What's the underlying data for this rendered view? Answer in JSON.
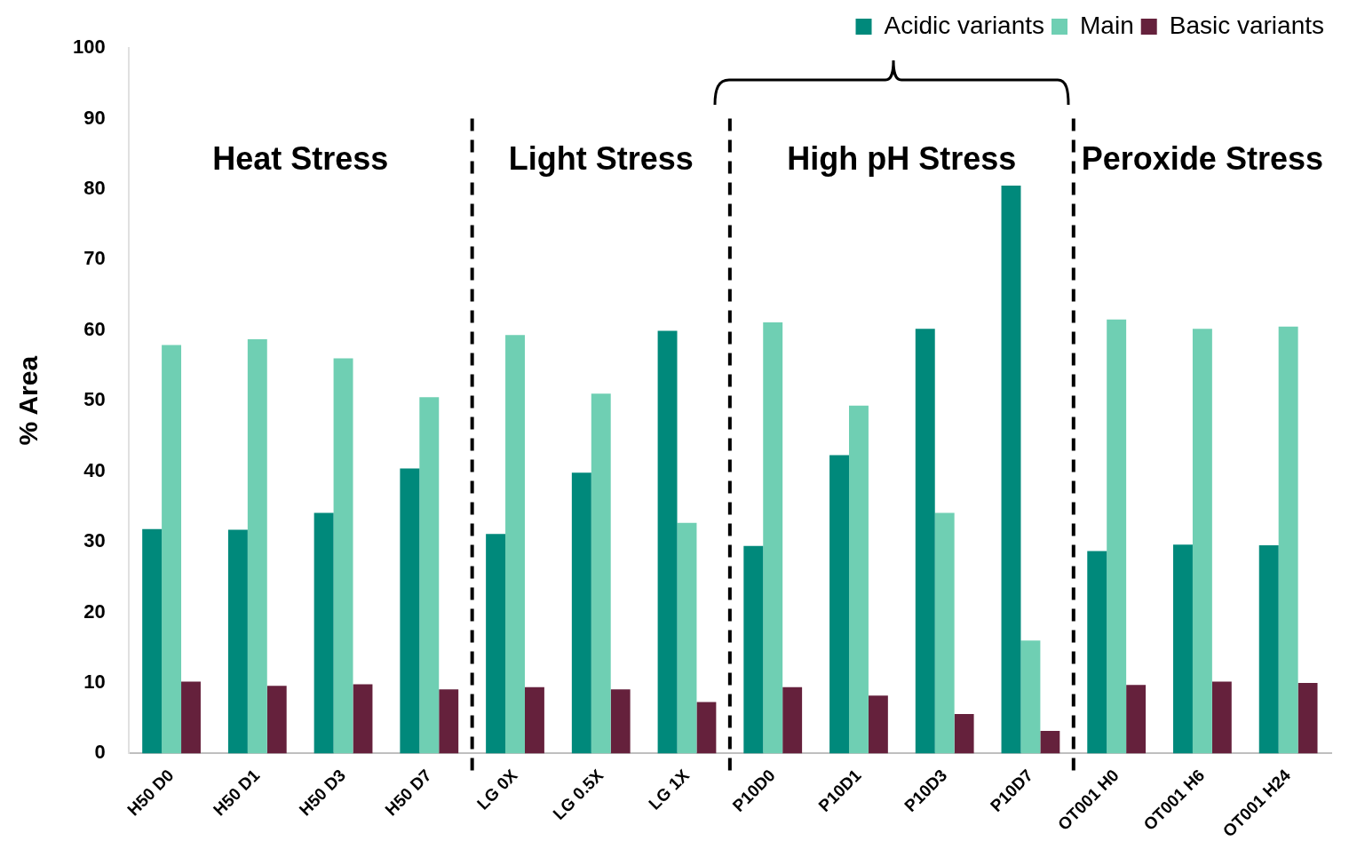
{
  "chart_data": {
    "type": "bar",
    "ylabel": "% Area",
    "categories": [
      "H50 D0",
      "H50 D1",
      "H50 D3",
      "H50 D7",
      "LG 0X",
      "LG 0.5X",
      "LG 1X",
      "P10D0",
      "P10D1",
      "P10D3",
      "P10D7",
      "OT001 H0",
      "OT001 H6",
      "OT001 H24"
    ],
    "series": [
      {
        "name": "Acidic variants",
        "color": "#00897b",
        "values": [
          31.8,
          31.7,
          34.1,
          40.4,
          31.1,
          39.8,
          59.9,
          29.4,
          42.3,
          60.2,
          80.5,
          28.7,
          29.6,
          29.5
        ]
      },
      {
        "name": "Main",
        "color": "#6fcfb3",
        "values": [
          57.9,
          58.7,
          56.0,
          50.5,
          59.3,
          51.0,
          32.7,
          61.1,
          49.3,
          34.1,
          16.0,
          61.5,
          60.2,
          60.5
        ]
      },
      {
        "name": "Basic variants",
        "color": "#65213c",
        "values": [
          10.2,
          9.6,
          9.8,
          9.1,
          9.4,
          9.1,
          7.3,
          9.4,
          8.2,
          5.6,
          3.2,
          9.7,
          10.2,
          10.0
        ]
      }
    ],
    "ylim": [
      0,
      100
    ],
    "yticks": [
      0,
      10,
      20,
      30,
      40,
      50,
      60,
      70,
      80,
      90,
      100
    ],
    "grid": false,
    "legend": "top right",
    "annotations": [
      "Heat Stress",
      "Light Stress",
      "High pH Stress",
      "Peroxide Stress"
    ]
  }
}
